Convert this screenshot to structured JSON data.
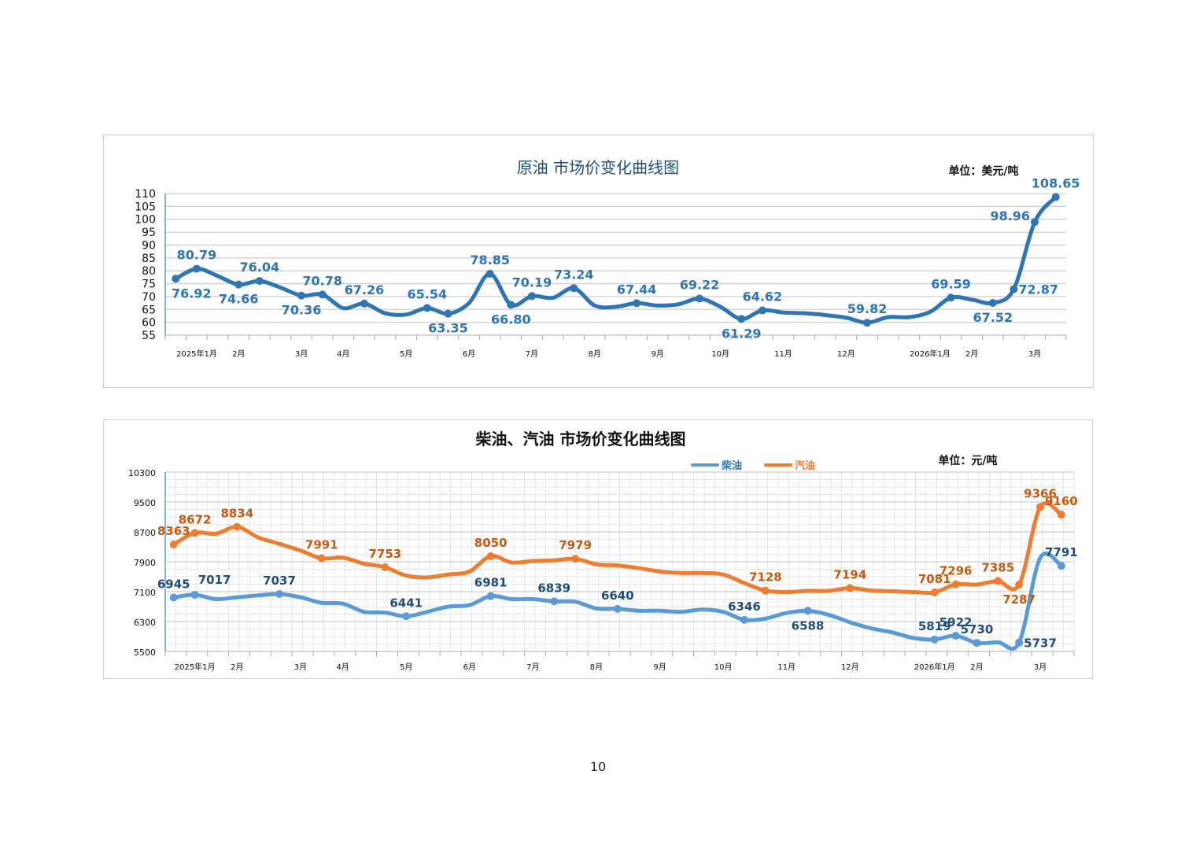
{
  "page_number": "10",
  "chart_data": [
    {
      "type": "line",
      "title": "原油  市场价变化曲线图",
      "unit": "单位：美元/吨",
      "ylim": [
        55,
        110
      ],
      "yticks": [
        55,
        60,
        65,
        70,
        75,
        80,
        85,
        90,
        95,
        100,
        105,
        110
      ],
      "grid": "horizontal",
      "categories": [
        "",
        "2025年1月",
        "",
        "2月",
        "",
        "",
        "3月",
        "",
        "4月",
        "",
        "",
        "5月",
        "",
        "",
        "6月",
        "",
        "",
        "7月",
        "",
        "",
        "8月",
        "",
        "",
        "9月",
        "",
        "",
        "10月",
        "",
        "",
        "11月",
        "",
        "",
        "12月",
        "",
        "",
        "",
        "2026年1月",
        "",
        "2月",
        "",
        "",
        "3月",
        ""
      ],
      "series": [
        {
          "color": "#2e75b6",
          "label_color": "#2e75b6",
          "values": [
            76.92,
            80.79,
            78.0,
            74.66,
            76.04,
            73.5,
            70.36,
            70.78,
            65.5,
            67.26,
            63.5,
            63.0,
            65.54,
            63.35,
            67.5,
            78.85,
            66.8,
            70.19,
            69.5,
            73.24,
            66.5,
            66.0,
            67.44,
            66.5,
            67.0,
            69.22,
            66.0,
            61.29,
            64.62,
            63.8,
            63.5,
            62.8,
            61.8,
            59.82,
            62.0,
            62.0,
            64.0,
            69.59,
            68.8,
            67.52,
            72.87,
            98.96,
            108.65
          ],
          "labels": {
            "0": "76.92",
            "1": "80.79",
            "3": "74.66",
            "4": "76.04",
            "6": "70.36",
            "7": "70.78",
            "9": "67.26",
            "12": "65.54",
            "13": "63.35",
            "15": "78.85",
            "16": "66.80",
            "17": "70.19",
            "19": "73.24",
            "22": "67.44",
            "25": "69.22",
            "27": "61.29",
            "28": "64.62",
            "33": "59.82",
            "37": "69.59",
            "39": "67.52",
            "40": "72.87",
            "41": "98.96",
            "42": "108.65"
          }
        }
      ]
    },
    {
      "type": "line",
      "title": "柴油、汽油  市场价变化曲线图",
      "unit": "单位：元/吨",
      "ylim": [
        5500,
        10300
      ],
      "yticks": [
        5500,
        6300,
        7100,
        7900,
        8700,
        9500,
        10300
      ],
      "grid": "major and minor",
      "legend": "top",
      "categories": [
        "",
        "2025年1月",
        "",
        "2月",
        "",
        "",
        "3月",
        "",
        "4月",
        "",
        "",
        "5月",
        "",
        "",
        "6月",
        "",
        "",
        "7月",
        "",
        "",
        "8月",
        "",
        "",
        "9月",
        "",
        "",
        "10月",
        "",
        "",
        "11月",
        "",
        "",
        "12月",
        "",
        "",
        "",
        "2026年1月",
        "",
        "2月",
        "",
        "",
        "3月",
        ""
      ],
      "series": [
        {
          "name": "柴油",
          "color": "#5b9bd5",
          "label_color": "#1f4e79",
          "values": [
            6945,
            7017,
            6900,
            6950,
            7000,
            7037,
            6950,
            6800,
            6780,
            6560,
            6540,
            6441,
            6560,
            6700,
            6740,
            6981,
            6900,
            6900,
            6839,
            6830,
            6650,
            6640,
            6590,
            6590,
            6560,
            6620,
            6560,
            6346,
            6380,
            6530,
            6588,
            6480,
            6280,
            6120,
            6010,
            5860,
            5819,
            5922,
            5730,
            5745,
            5737,
            8005,
            7791
          ],
          "labels": {
            "0": "6945",
            "1": "7017",
            "5": "7037",
            "11": "6441",
            "15": "6981",
            "18": "6839",
            "21": "6640",
            "27": "6346",
            "30": "6588",
            "36": "5819",
            "37": "5922",
            "38": "5730",
            "40": "5737",
            "42": "7791"
          }
        },
        {
          "name": "汽油",
          "color": "#ed7d31",
          "label_color": "#c55a11",
          "values": [
            8363,
            8672,
            8650,
            8834,
            8550,
            8380,
            8200,
            7991,
            8010,
            7850,
            7753,
            7530,
            7480,
            7560,
            7640,
            8050,
            7880,
            7920,
            7940,
            7979,
            7830,
            7800,
            7730,
            7640,
            7600,
            7600,
            7560,
            7330,
            7128,
            7090,
            7120,
            7120,
            7194,
            7130,
            7110,
            7090,
            7081,
            7296,
            7290,
            7385,
            7287,
            9366,
            9160
          ],
          "labels": {
            "0": "8363",
            "1": "8672",
            "3": "8834",
            "7": "7991",
            "10": "7753",
            "15": "8050",
            "19": "7979",
            "28": "7128",
            "32": "7194",
            "36": "7081",
            "37": "7296",
            "39": "7385",
            "40": "7287",
            "41": "9366",
            "42": "9160"
          }
        }
      ]
    }
  ]
}
